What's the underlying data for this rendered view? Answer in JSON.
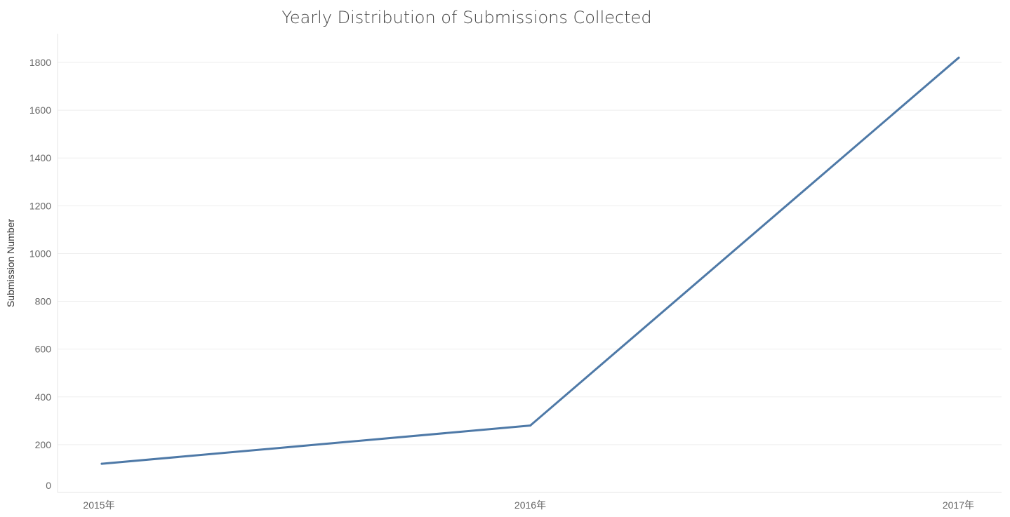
{
  "chart_data": {
    "type": "line",
    "title": "Yearly Distribution of Submissions Collected",
    "xlabel": "",
    "ylabel": "Submission Number",
    "categories": [
      "2015年",
      "2016年",
      "2017年"
    ],
    "series": [
      {
        "values": [
          120,
          280,
          1820
        ],
        "color": "#4e79a7"
      }
    ],
    "yticks": [
      0,
      200,
      400,
      600,
      800,
      1000,
      1200,
      1400,
      1600,
      1800
    ],
    "ylim": [
      0,
      1900
    ],
    "grid": true,
    "legend": "none"
  }
}
